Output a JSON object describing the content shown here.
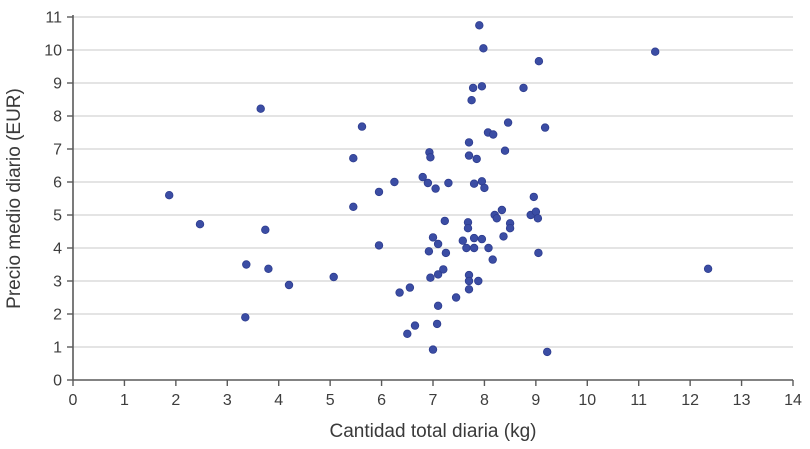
{
  "chart_data": {
    "type": "scatter",
    "title": "",
    "xlabel": "Cantidad total diaria (kg)",
    "ylabel": "Precio medio diario (EUR)",
    "xlim": [
      0,
      14
    ],
    "ylim": [
      0,
      11
    ],
    "x_ticks": [
      0,
      1,
      2,
      3,
      4,
      5,
      6,
      7,
      8,
      9,
      10,
      11,
      12,
      13,
      14
    ],
    "y_ticks": [
      0,
      1,
      2,
      3,
      4,
      5,
      6,
      7,
      8,
      9,
      10,
      11
    ],
    "grid": "horizontal-only",
    "legend": "none",
    "point_color": "#3b4da4",
    "grid_color": "#c9c9c9",
    "axis_color": "#5a5a5a",
    "text_color": "#3a3a3a",
    "points": [
      [
        1.87,
        5.6
      ],
      [
        2.47,
        4.72
      ],
      [
        3.35,
        1.9
      ],
      [
        3.37,
        3.5
      ],
      [
        3.65,
        8.22
      ],
      [
        3.74,
        4.55
      ],
      [
        3.8,
        3.37
      ],
      [
        4.2,
        2.88
      ],
      [
        5.07,
        3.12
      ],
      [
        5.45,
        5.25
      ],
      [
        5.45,
        6.72
      ],
      [
        5.62,
        7.68
      ],
      [
        5.95,
        5.7
      ],
      [
        5.95,
        4.08
      ],
      [
        6.25,
        6.0
      ],
      [
        6.35,
        2.65
      ],
      [
        6.5,
        1.4
      ],
      [
        6.55,
        2.8
      ],
      [
        6.65,
        1.65
      ],
      [
        6.8,
        6.15
      ],
      [
        6.9,
        5.97
      ],
      [
        6.93,
        6.9
      ],
      [
        6.95,
        6.75
      ],
      [
        6.92,
        3.9
      ],
      [
        7.0,
        4.32
      ],
      [
        6.95,
        3.1
      ],
      [
        7.0,
        0.92
      ],
      [
        7.05,
        5.8
      ],
      [
        7.1,
        4.12
      ],
      [
        7.1,
        3.2
      ],
      [
        7.1,
        2.25
      ],
      [
        7.08,
        1.7
      ],
      [
        7.2,
        3.35
      ],
      [
        7.23,
        4.82
      ],
      [
        7.25,
        3.85
      ],
      [
        7.3,
        5.97
      ],
      [
        7.45,
        2.5
      ],
      [
        7.58,
        4.22
      ],
      [
        7.65,
        4.0
      ],
      [
        7.68,
        4.78
      ],
      [
        7.68,
        4.6
      ],
      [
        7.7,
        3.18
      ],
      [
        7.7,
        3.0
      ],
      [
        7.7,
        2.75
      ],
      [
        7.7,
        7.2
      ],
      [
        7.7,
        6.8
      ],
      [
        7.75,
        8.48
      ],
      [
        7.78,
        8.85
      ],
      [
        7.8,
        4.3
      ],
      [
        7.8,
        4.0
      ],
      [
        7.8,
        5.95
      ],
      [
        7.9,
        10.75
      ],
      [
        7.95,
        4.27
      ],
      [
        7.88,
        3.0
      ],
      [
        7.85,
        6.7
      ],
      [
        7.95,
        6.02
      ],
      [
        7.95,
        8.9
      ],
      [
        7.98,
        10.05
      ],
      [
        8.0,
        5.82
      ],
      [
        8.08,
        4.0
      ],
      [
        8.07,
        7.5
      ],
      [
        8.17,
        7.44
      ],
      [
        8.16,
        3.65
      ],
      [
        8.2,
        5.0
      ],
      [
        8.24,
        4.9
      ],
      [
        8.34,
        5.15
      ],
      [
        8.37,
        4.35
      ],
      [
        8.46,
        7.8
      ],
      [
        8.5,
        4.75
      ],
      [
        8.5,
        4.6
      ],
      [
        8.4,
        6.95
      ],
      [
        8.76,
        8.85
      ],
      [
        8.9,
        5.0
      ],
      [
        9.0,
        5.1
      ],
      [
        9.04,
        4.9
      ],
      [
        8.96,
        5.55
      ],
      [
        9.05,
        3.85
      ],
      [
        9.06,
        9.66
      ],
      [
        9.18,
        7.65
      ],
      [
        9.22,
        0.85
      ],
      [
        11.32,
        9.95
      ],
      [
        12.35,
        3.37
      ]
    ]
  }
}
